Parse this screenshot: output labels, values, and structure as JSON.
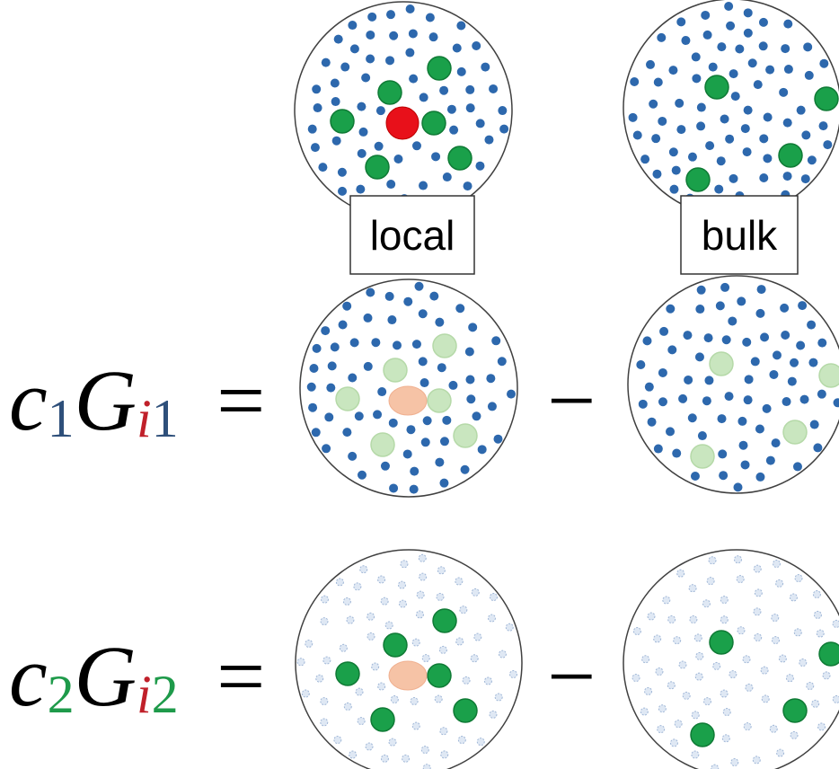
{
  "labels": [
    "local",
    "bulk"
  ],
  "equations": [
    {
      "coefficient": "c",
      "coefficient_index": "1",
      "symbol": "G",
      "species_index": "i",
      "component_index": "1",
      "equals": "=",
      "minus": "−"
    },
    {
      "coefficient": "c",
      "coefficient_index": "2",
      "symbol": "G",
      "species_index": "i",
      "component_index": "2",
      "equals": "=",
      "minus": "−"
    }
  ]
}
